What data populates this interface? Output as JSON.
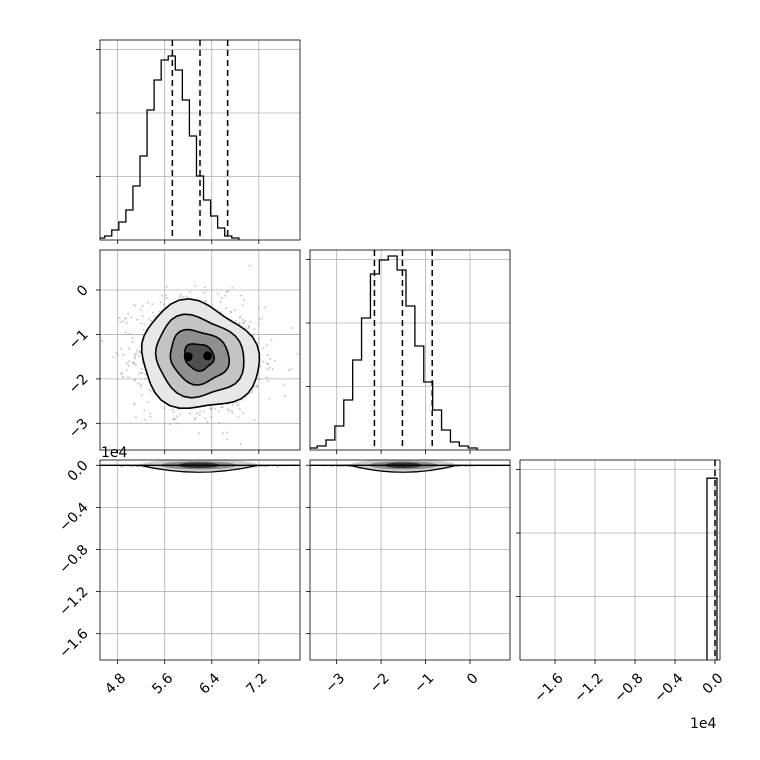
{
  "chart_data": {
    "type": "corner",
    "grid": true,
    "panels": [
      {
        "id": "hist-p0",
        "type": "histogram",
        "param": 0,
        "xlim": [
          4.5,
          7.9
        ],
        "bin_start": 4.46,
        "bin_width": 0.12,
        "counts": [
          1,
          2,
          5,
          9,
          15,
          27,
          42,
          65,
          80,
          90,
          92,
          85,
          70,
          52,
          32,
          20,
          12,
          6,
          2,
          1
        ],
        "ylim": [
          0,
          100
        ],
        "quantiles": [
          5.73,
          6.2,
          6.67
        ]
      },
      {
        "id": "hist-p1",
        "type": "histogram",
        "param": 1,
        "xlim": [
          -3.6,
          0.9
        ],
        "bin_start": -3.64,
        "bin_width": 0.2,
        "counts": [
          1,
          2,
          5,
          12,
          25,
          45,
          66,
          88,
          95,
          97,
          90,
          72,
          52,
          34,
          20,
          10,
          4,
          2,
          1
        ],
        "ylim": [
          0,
          100
        ],
        "quantiles": [
          -2.15,
          -1.52,
          -0.85
        ]
      },
      {
        "id": "hist-p2",
        "type": "histogram",
        "param": 2,
        "xlim": [
          -1.95,
          0.05
        ],
        "bars": [
          {
            "x0": -0.08,
            "x1": 0.02,
            "count": 50
          }
        ],
        "ylim": [
          0,
          55
        ],
        "quantiles": [
          0.0
        ]
      },
      {
        "id": "joint-p0-p1",
        "type": "contour",
        "params": [
          0,
          1
        ],
        "xlim": [
          4.5,
          7.9
        ],
        "ylim": [
          -3.6,
          0.9
        ],
        "center": [
          6.18,
          -1.5
        ],
        "sigma": [
          0.5,
          0.6
        ],
        "correlation": -0.1,
        "levels_sigma": [
          0.5,
          1.0,
          1.5,
          2.0
        ],
        "peak_points": [
          [
            6.0,
            -1.5
          ],
          [
            6.33,
            -1.48
          ]
        ]
      },
      {
        "id": "joint-p0-p2",
        "type": "contour",
        "params": [
          0,
          2
        ],
        "xlim": [
          4.5,
          7.9
        ],
        "ylim": [
          -1.85,
          0.05
        ],
        "center": [
          6.18,
          0.0
        ],
        "sigma": [
          0.5,
          0.01
        ],
        "band_y": 0.0
      },
      {
        "id": "joint-p1-p2",
        "type": "contour",
        "params": [
          1,
          2
        ],
        "xlim": [
          -3.6,
          0.9
        ],
        "ylim": [
          -1.85,
          0.05
        ],
        "center": [
          -1.5,
          0.0
        ],
        "sigma": [
          0.6,
          0.01
        ],
        "band_y": 0.0
      }
    ],
    "tick_labels": {
      "p0": [
        "4.8",
        "5.6",
        "6.4",
        "7.2"
      ],
      "p1": [
        "−3",
        "−2",
        "−1",
        "0"
      ],
      "p2": [
        "0.0",
        "−0.4",
        "−0.8",
        "−1.2",
        "−1.6"
      ],
      "p2_bottom": [
        "−1.6",
        "−1.2",
        "−0.8",
        "−0.4",
        "0.0"
      ]
    },
    "tick_values": {
      "p0": [
        4.8,
        5.6,
        6.4,
        7.2
      ],
      "p1": [
        -3,
        -2,
        -1,
        0
      ],
      "p2": [
        0.0,
        -0.4,
        -0.8,
        -1.2,
        -1.6
      ],
      "p2_bottom": [
        -1.6,
        -1.2,
        -0.8,
        -0.4,
        0.0
      ]
    },
    "offset_labels": {
      "left_p2": "1e4",
      "bottom_p2": "1e4"
    }
  }
}
